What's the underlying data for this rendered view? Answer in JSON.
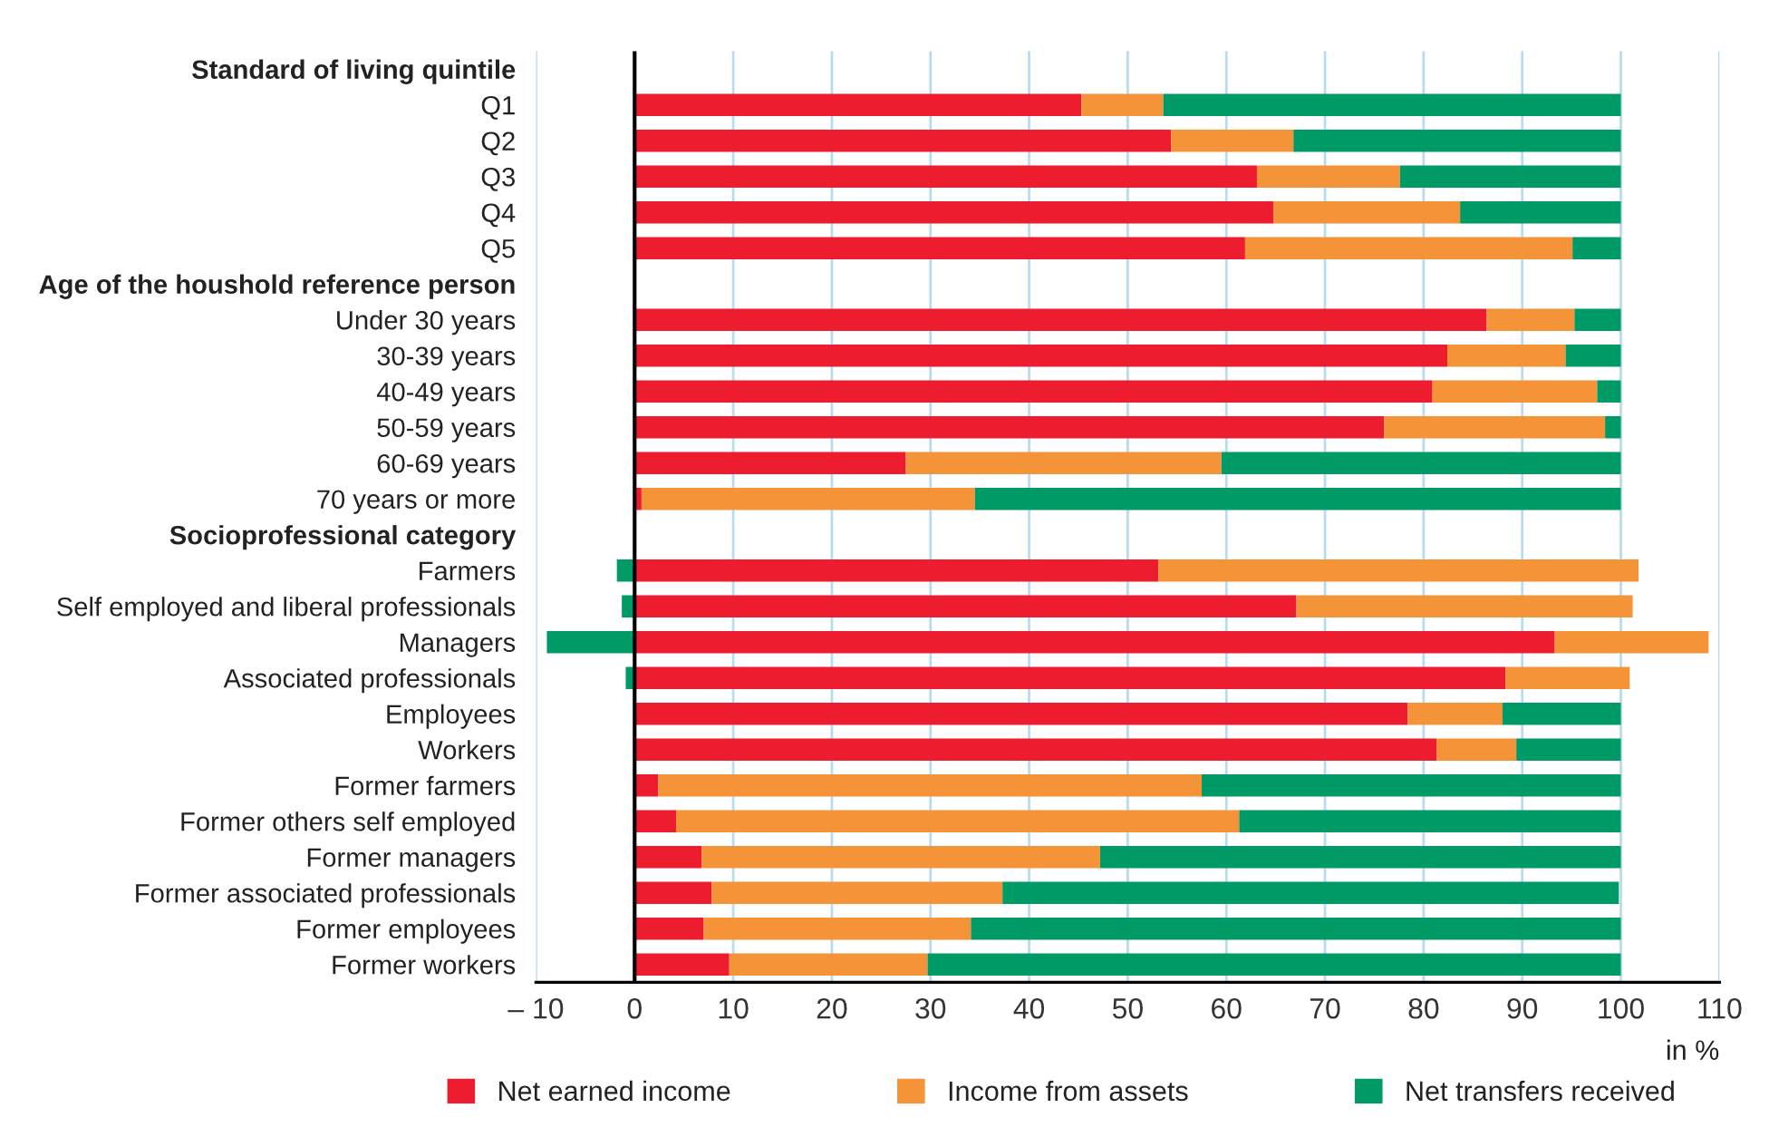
{
  "chart_data": {
    "type": "bar",
    "orientation": "horizontal",
    "stacked": true,
    "xlabel": "in %",
    "categories": [
      "Standard of living quintile",
      "Q1",
      "Q2",
      "Q3",
      "Q4",
      "Q5",
      "Age of the houshold reference person",
      "Under 30 years",
      "30-39 years",
      "40-49 years",
      "50-59 years",
      "60-69 years",
      "70 years or more",
      "Socioprofessional category",
      "Farmers",
      "Self employed and liberal professionals",
      "Managers",
      "Associated professionals",
      "Employees",
      "Workers",
      "Former farmers",
      "Former others self employed",
      "Former managers",
      "Former associated professionals",
      "Former employees",
      "Former workers"
    ],
    "series": [
      {
        "name": "Net earned income",
        "color": "#ed1c2e",
        "values": [
          null,
          45.3,
          54.4,
          63.1,
          64.8,
          61.9,
          null,
          86.4,
          82.4,
          80.9,
          76.0,
          27.5,
          0.7,
          null,
          53.1,
          67.1,
          93.3,
          88.3,
          78.4,
          81.3,
          2.4,
          4.2,
          6.8,
          7.8,
          7.0,
          9.6
        ]
      },
      {
        "name": "Income from assets",
        "color": "#f59338",
        "values": [
          null,
          8.3,
          12.4,
          14.5,
          18.9,
          33.2,
          null,
          8.9,
          12.0,
          16.7,
          22.4,
          32.0,
          33.8,
          null,
          48.7,
          34.1,
          15.6,
          12.6,
          9.6,
          8.1,
          55.1,
          57.1,
          40.4,
          29.5,
          27.1,
          20.1
        ]
      },
      {
        "name": "Net transfers received",
        "color": "#009a66",
        "values": [
          null,
          46.4,
          33.2,
          22.4,
          16.3,
          4.9,
          null,
          4.7,
          5.6,
          2.4,
          1.6,
          40.5,
          65.5,
          null,
          -1.8,
          -1.3,
          -8.9,
          -0.9,
          12.0,
          10.6,
          42.5,
          38.7,
          52.8,
          62.5,
          65.9,
          70.3
        ]
      }
    ],
    "xlim": [
      -10,
      110
    ],
    "xticks": [
      {
        "value": -10,
        "label": "– 10"
      },
      0,
      10,
      20,
      30,
      40,
      50,
      60,
      70,
      80,
      90,
      100,
      110
    ],
    "ref_lines": [
      {
        "axis": "x",
        "value": 0,
        "color": "#000000"
      }
    ],
    "grid": "x",
    "legend": "bottom"
  }
}
